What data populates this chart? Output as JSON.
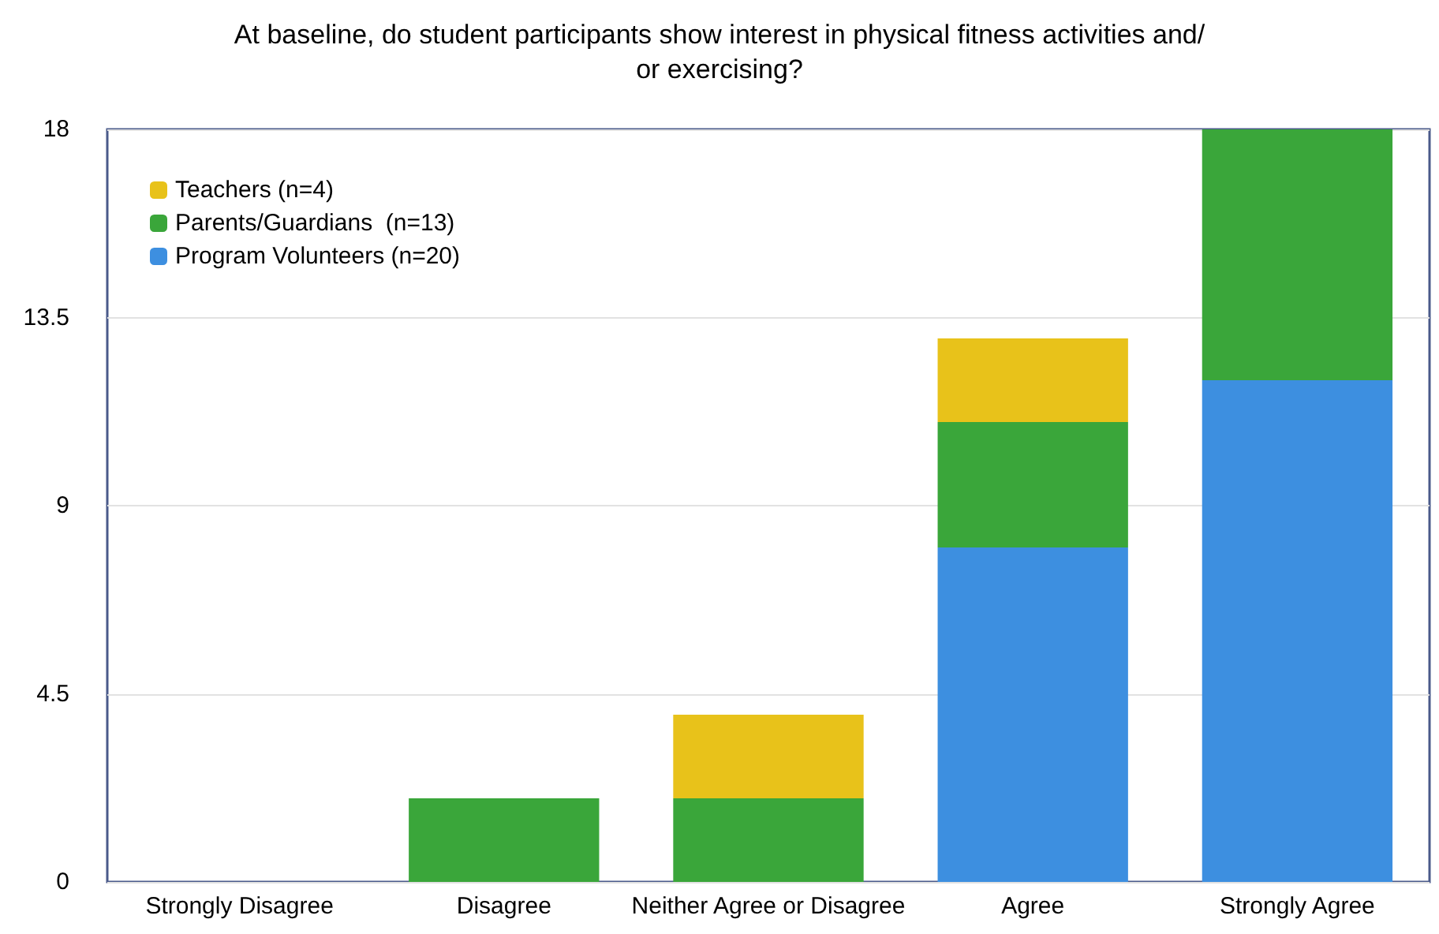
{
  "chart_data": {
    "type": "bar",
    "title": "At baseline, do student participants show interest in physical fitness activities and/\nor exercising?",
    "categories": [
      "Strongly Disagree",
      "Disagree",
      "Neither Agree or Disagree",
      "Agree",
      "Strongly Agree"
    ],
    "stacked": true,
    "series": [
      {
        "name": "Program Volunteers (n=20)",
        "color": "#3d8fe0",
        "values": [
          0,
          0,
          0,
          8,
          12
        ]
      },
      {
        "name": "Parents/Guardians  (n=13)",
        "color": "#3aa63a",
        "values": [
          0,
          2,
          2,
          3,
          6
        ]
      },
      {
        "name": "Teachers (n=4)",
        "color": "#e8c21a",
        "values": [
          0,
          0,
          2,
          2,
          0
        ]
      }
    ],
    "ylim": [
      0,
      18
    ],
    "yticks": [
      0,
      4.5,
      9,
      13.5,
      18
    ],
    "grid": "y",
    "legend": "top left"
  }
}
